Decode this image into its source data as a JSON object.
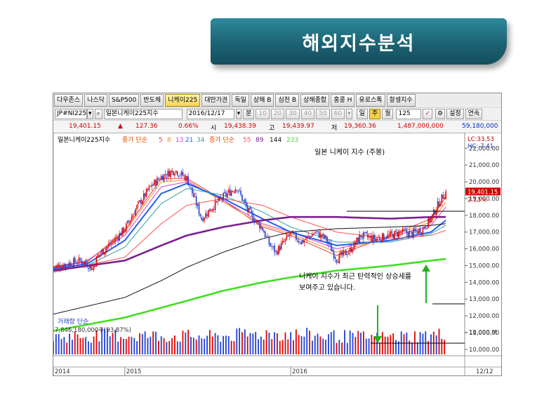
{
  "page_title": "해외지수분석",
  "tabs": [
    "다우존스",
    "나스닥",
    "S&P500",
    "반도체",
    "니케이225",
    "대만가권",
    "독일",
    "상해 B",
    "심천 B",
    "상해종합",
    "홍콩 H",
    "유로스톡",
    "항셍지수"
  ],
  "active_tab": 4,
  "toolbar": {
    "code": "JP#NI225",
    "name": "일본니케이225지수",
    "date": "2016/12/17",
    "period_label": "분",
    "intervals": [
      "10",
      "20",
      "30",
      "40",
      "50",
      "60"
    ],
    "day_label": "일",
    "week_label": "주",
    "month_label": "월",
    "count": "125",
    "settings_label": "설정",
    "continuous_label": "연속"
  },
  "quote": {
    "price": "19,401.15",
    "change_arrow": "▲",
    "change": "127.36",
    "change_pct": "0.66%",
    "open_label": "시",
    "open": "19,438.39",
    "high_label": "고",
    "high": "19,439.97",
    "low_label": "저",
    "low": "19,360.36",
    "volume": "1,487,000,000",
    "amount": "59,180,000"
  },
  "chart_legend": {
    "name": "일본니케이225지수",
    "ma1_label": "종가 단순",
    "ma1_periods": [
      "5",
      "8",
      "13",
      "21",
      "34"
    ],
    "ma2_label": "종가 단순",
    "ma2_periods": [
      "55",
      "89",
      "144",
      "233"
    ]
  },
  "chart_data": {
    "type": "line",
    "title": "일본 니케이 지수 (주봉)",
    "y_ticks": [
      "22,000.00",
      "21,000.00",
      "20,000.00",
      "19,000.00",
      "18,000.00",
      "17,000.00",
      "16,000.00",
      "15,000.00",
      "14,000.00",
      "13,000.00",
      "12,000.00",
      "11,000.00",
      "10,000.00"
    ],
    "ylim": [
      9700,
      22600
    ],
    "x_ticks": [
      {
        "label": "2014",
        "week": 0
      },
      {
        "label": "2015",
        "week": 53
      },
      {
        "label": "2016",
        "week": 176
      },
      {
        "label": "12/12",
        "week": 305
      }
    ],
    "lc_label": "LC:33.53",
    "hc_label": "HC:-7.41",
    "last_price_label": "19,401.15",
    "last_pct_label": "2.13%",
    "annotation": [
      "니케이 지수가 최근 탄력적인 상승세를",
      "보여주고 있습니다."
    ],
    "price_keypoints": [
      [
        0,
        14900
      ],
      [
        10,
        15100
      ],
      [
        20,
        15300
      ],
      [
        25,
        15100
      ],
      [
        29,
        14800
      ],
      [
        33,
        15600
      ],
      [
        45,
        16500
      ],
      [
        53,
        17200
      ],
      [
        62,
        18500
      ],
      [
        72,
        19700
      ],
      [
        80,
        20300
      ],
      [
        90,
        20700
      ],
      [
        99,
        20200
      ],
      [
        105,
        18900
      ],
      [
        110,
        17800
      ],
      [
        118,
        18500
      ],
      [
        126,
        19100
      ],
      [
        136,
        19700
      ],
      [
        144,
        18300
      ],
      [
        155,
        17200
      ],
      [
        160,
        16300
      ],
      [
        165,
        15800
      ],
      [
        176,
        16900
      ],
      [
        184,
        16400
      ],
      [
        194,
        17000
      ],
      [
        202,
        16600
      ],
      [
        210,
        15400
      ],
      [
        220,
        15900
      ],
      [
        228,
        16800
      ],
      [
        238,
        16600
      ],
      [
        250,
        16800
      ],
      [
        258,
        17000
      ],
      [
        266,
        16900
      ],
      [
        274,
        17200
      ],
      [
        280,
        17800
      ],
      [
        287,
        18900
      ],
      [
        291,
        19401
      ]
    ],
    "series": [
      {
        "name": "5",
        "color": "#e63c3c",
        "points": [
          [
            0,
            14950
          ],
          [
            25,
            15200
          ],
          [
            53,
            17100
          ],
          [
            80,
            20200
          ],
          [
            99,
            20200
          ],
          [
            126,
            18900
          ],
          [
            155,
            17300
          ],
          [
            176,
            16800
          ],
          [
            210,
            15600
          ],
          [
            250,
            16800
          ],
          [
            280,
            17800
          ],
          [
            291,
            19100
          ]
        ]
      },
      {
        "name": "8",
        "color": "#f09020",
        "points": [
          [
            0,
            14900
          ],
          [
            25,
            15250
          ],
          [
            53,
            17000
          ],
          [
            80,
            20000
          ],
          [
            99,
            20100
          ],
          [
            126,
            18800
          ],
          [
            155,
            17400
          ],
          [
            176,
            16900
          ],
          [
            210,
            15800
          ],
          [
            250,
            16750
          ],
          [
            280,
            17600
          ],
          [
            291,
            18800
          ]
        ]
      },
      {
        "name": "13",
        "color": "#d040d0",
        "points": [
          [
            0,
            14850
          ],
          [
            25,
            15300
          ],
          [
            53,
            16800
          ],
          [
            80,
            19700
          ],
          [
            99,
            20000
          ],
          [
            126,
            18900
          ],
          [
            155,
            17500
          ],
          [
            176,
            17000
          ],
          [
            210,
            16000
          ],
          [
            250,
            16700
          ],
          [
            280,
            17400
          ],
          [
            291,
            18500
          ]
        ]
      },
      {
        "name": "21",
        "color": "#2060f0",
        "points": [
          [
            0,
            14800
          ],
          [
            25,
            15100
          ],
          [
            53,
            16500
          ],
          [
            80,
            19300
          ],
          [
            99,
            19900
          ],
          [
            126,
            19000
          ],
          [
            155,
            17800
          ],
          [
            176,
            17000
          ],
          [
            210,
            16200
          ],
          [
            250,
            16500
          ],
          [
            280,
            17000
          ],
          [
            291,
            17700
          ]
        ]
      },
      {
        "name": "34",
        "color": "#30a0a0",
        "points": [
          [
            0,
            14700
          ],
          [
            25,
            15000
          ],
          [
            53,
            16100
          ],
          [
            80,
            18700
          ],
          [
            99,
            19600
          ],
          [
            126,
            19200
          ],
          [
            155,
            18200
          ],
          [
            176,
            17300
          ],
          [
            210,
            16400
          ],
          [
            250,
            16400
          ],
          [
            280,
            16900
          ],
          [
            291,
            17400
          ]
        ]
      },
      {
        "name": "55",
        "color": "#ff5050",
        "points": [
          [
            0,
            14600
          ],
          [
            53,
            15500
          ],
          [
            80,
            17500
          ],
          [
            99,
            18600
          ],
          [
            126,
            19000
          ],
          [
            155,
            18600
          ],
          [
            176,
            17900
          ],
          [
            210,
            17000
          ],
          [
            250,
            16600
          ],
          [
            280,
            16800
          ],
          [
            291,
            17100
          ]
        ]
      },
      {
        "name": "89",
        "color": "#7a2090",
        "points": [
          [
            0,
            14700
          ],
          [
            53,
            15300
          ],
          [
            80,
            16200
          ],
          [
            99,
            16800
          ],
          [
            126,
            17300
          ],
          [
            155,
            17700
          ],
          [
            176,
            17900
          ],
          [
            210,
            17900
          ],
          [
            250,
            17800
          ],
          [
            280,
            17900
          ],
          [
            291,
            17900
          ]
        ]
      },
      {
        "name": "144",
        "color": "#111111",
        "points": [
          [
            0,
            12100
          ],
          [
            53,
            13100
          ],
          [
            80,
            14100
          ],
          [
            99,
            14900
          ],
          [
            126,
            15800
          ],
          [
            155,
            16600
          ],
          [
            176,
            17000
          ],
          [
            210,
            17200
          ],
          [
            250,
            17300
          ],
          [
            280,
            17400
          ],
          [
            291,
            17500
          ]
        ]
      },
      {
        "name": "233",
        "color": "#40e020",
        "points": [
          [
            0,
            11100
          ],
          [
            53,
            11900
          ],
          [
            99,
            12900
          ],
          [
            126,
            13500
          ],
          [
            155,
            14000
          ],
          [
            176,
            14300
          ],
          [
            210,
            14700
          ],
          [
            250,
            15000
          ],
          [
            280,
            15300
          ],
          [
            291,
            15400
          ]
        ]
      }
    ],
    "volume_title": "거래량 단순",
    "volume_value": "7,846,180,000주(93,87%)",
    "volume_tick": "10,000,M",
    "volume_ylim": [
      0,
      14000
    ],
    "volume_keypoints": [
      [
        0,
        8000
      ],
      [
        40,
        9000
      ],
      [
        80,
        8500
      ],
      [
        120,
        8200
      ],
      [
        160,
        9800
      ],
      [
        200,
        8600
      ],
      [
        240,
        7800
      ],
      [
        291,
        9200
      ]
    ]
  }
}
